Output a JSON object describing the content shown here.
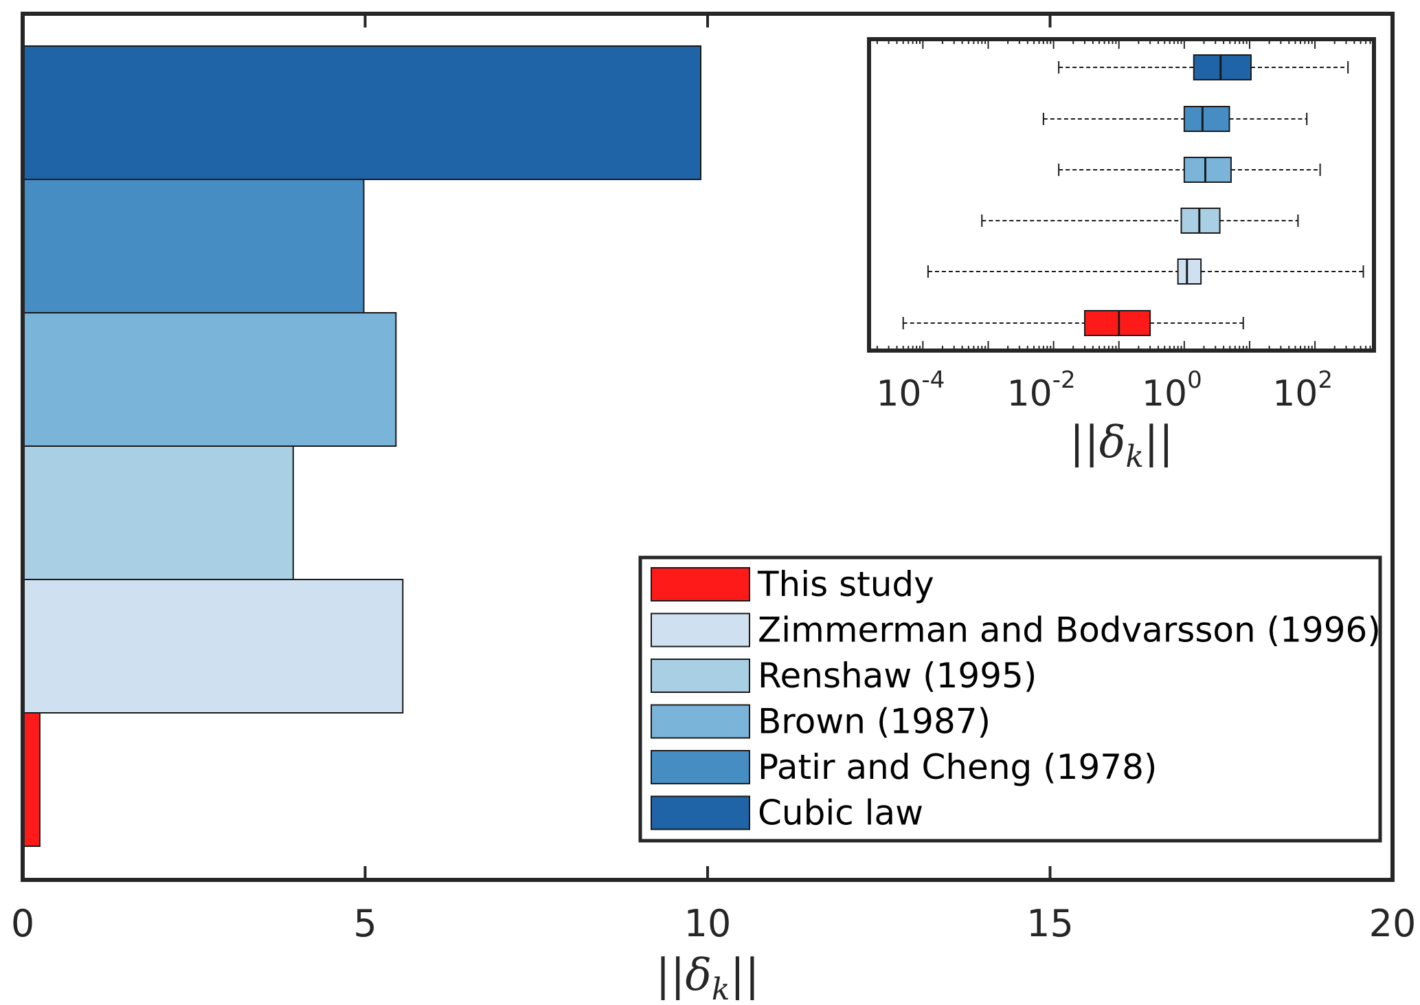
{
  "chart_data": [
    {
      "type": "bar",
      "orientation": "horizontal",
      "categories": [
        "This study",
        "Zimmerman and Bodvarsson (1996)",
        "Renshaw (1995)",
        "Brown (1987)",
        "Patir and Cheng (1978)",
        "Cubic law"
      ],
      "values": [
        0.25,
        5.55,
        3.95,
        5.45,
        4.98,
        9.9
      ],
      "colors": [
        "#ff1a1a",
        "#cfe0f0",
        "#a9cfe4",
        "#7ab4d9",
        "#468dc4",
        "#2064a8"
      ],
      "xlabel": "||δ_k||",
      "xlim": [
        0,
        20
      ],
      "xticks": [
        "0",
        "5",
        "10",
        "15",
        "20"
      ],
      "grid": false,
      "legend_position": "bottom-right",
      "legend": [
        "This study",
        "Zimmerman and Bodvarsson (1996)",
        "Renshaw (1995)",
        "Brown (1987)",
        "Patir and Cheng (1978)",
        "Cubic law"
      ]
    },
    {
      "type": "box",
      "orientation": "horizontal",
      "x_scale": "log",
      "xlim": [
        1.5e-05,
        800
      ],
      "xlabel": "||δ_k||",
      "xticks": [
        {
          "base": "10",
          "exp": "-4"
        },
        {
          "base": "10",
          "exp": "-2"
        },
        {
          "base": "10",
          "exp": "0"
        },
        {
          "base": "10",
          "exp": "2"
        }
      ],
      "boxes": [
        {
          "name": "This study",
          "color": "#ff1a1a",
          "whisker_low": 5e-05,
          "q1": 0.03,
          "median": 0.1,
          "q3": 0.3,
          "whisker_high": 8
        },
        {
          "name": "Zimmerman and Bodvarsson (1996)",
          "color": "#cfe0f0",
          "whisker_low": 0.00012,
          "q1": 0.8,
          "median": 1.1,
          "q3": 1.8,
          "whisker_high": 550
        },
        {
          "name": "Renshaw (1995)",
          "color": "#a9cfe4",
          "whisker_low": 0.0008,
          "q1": 0.9,
          "median": 1.7,
          "q3": 3.5,
          "whisker_high": 55
        },
        {
          "name": "Brown (1987)",
          "color": "#7ab4d9",
          "whisker_low": 0.012,
          "q1": 1.0,
          "median": 2.1,
          "q3": 5.2,
          "whisker_high": 120
        },
        {
          "name": "Patir and Cheng (1978)",
          "color": "#468dc4",
          "whisker_low": 0.007,
          "q1": 1.0,
          "median": 1.9,
          "q3": 4.9,
          "whisker_high": 75
        },
        {
          "name": "Cubic law",
          "color": "#2064a8",
          "whisker_low": 0.012,
          "q1": 1.4,
          "median": 3.6,
          "q3": 10.5,
          "whisker_high": 320
        }
      ]
    }
  ]
}
